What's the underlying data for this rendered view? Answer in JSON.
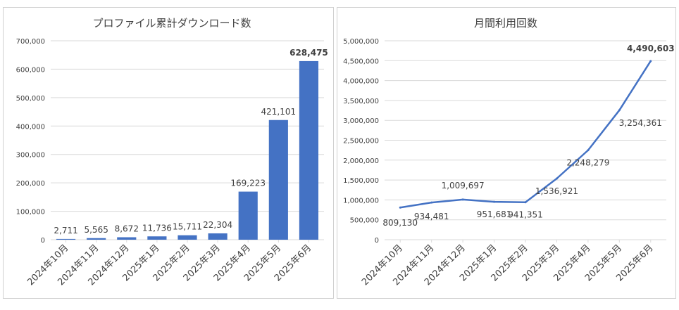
{
  "colors": {
    "bar": "#4472c4",
    "line": "#4472c4",
    "text": "#404040",
    "grid": "#d9d9d9",
    "frame": "#d0d0d0"
  },
  "chart_data": [
    {
      "type": "bar",
      "title": "プロファイル累計ダウンロード数",
      "categories": [
        "2024年10月",
        "2024年11月",
        "2024年12月",
        "2025年1月",
        "2025年2月",
        "2025年3月",
        "2025年4月",
        "2025年5月",
        "2025年6月"
      ],
      "values": [
        2711,
        5565,
        8672,
        11736,
        15711,
        22304,
        169223,
        421101,
        628475
      ],
      "data_labels": [
        "2,711",
        "5,565",
        "8,672",
        "11,736",
        "15,711",
        "22,304",
        "169,223",
        "421,101",
        "628,475"
      ],
      "y_ticks": [
        "0",
        "100,000",
        "200,000",
        "300,000",
        "400,000",
        "500,000",
        "600,000",
        "700,000"
      ],
      "ylim": [
        0,
        700000
      ],
      "grid": true
    },
    {
      "type": "line",
      "title": "月間利用回数",
      "categories": [
        "2024年10月",
        "2024年11月",
        "2024年12月",
        "2025年1月",
        "2025年2月",
        "2025年3月",
        "2025年4月",
        "2025年5月",
        "2025年6月"
      ],
      "values": [
        809130,
        934481,
        1009697,
        951681,
        941351,
        1536921,
        2248279,
        3254361,
        4490603
      ],
      "data_labels": [
        "809,130",
        "934,481",
        "1,009,697",
        "951,681",
        "941,351",
        "1,536,921",
        "2,248,279",
        "3,254,361",
        "4,490,603"
      ],
      "y_ticks": [
        "0",
        "500,000",
        "1,000,000",
        "1,500,000",
        "2,000,000",
        "2,500,000",
        "3,000,000",
        "3,500,000",
        "4,000,000",
        "4,500,000",
        "5,000,000"
      ],
      "ylim": [
        0,
        5000000
      ],
      "grid": true
    }
  ]
}
